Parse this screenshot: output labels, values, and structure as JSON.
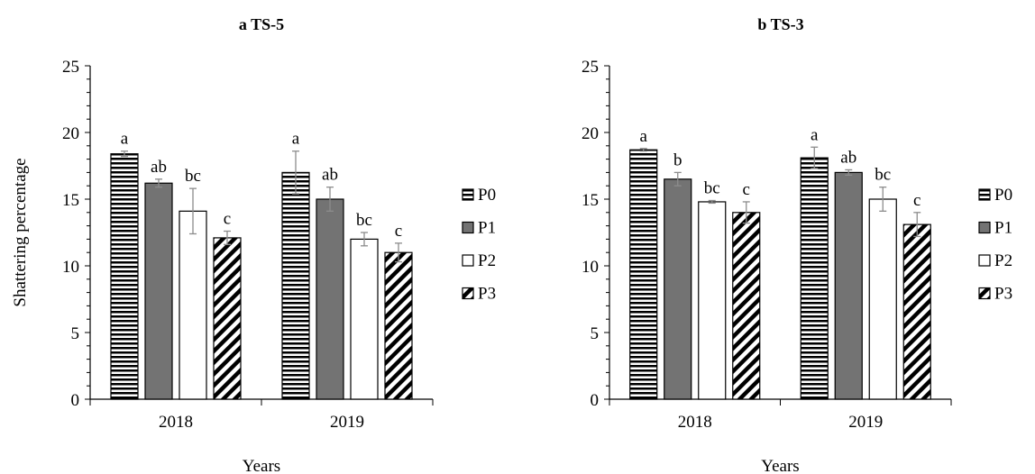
{
  "chart_data": [
    {
      "type": "bar",
      "title": "a TS-5",
      "xlabel": "Years",
      "ylabel": "Shattering percentage",
      "ylim": [
        0,
        25
      ],
      "ytick_step": 5,
      "categories": [
        "2018",
        "2019"
      ],
      "series": [
        {
          "name": "P0",
          "values": [
            18.4,
            17.0
          ],
          "errors": [
            0.2,
            1.6
          ],
          "letters": [
            "a",
            "a"
          ]
        },
        {
          "name": "P1",
          "values": [
            16.2,
            15.0
          ],
          "errors": [
            0.3,
            0.9
          ],
          "letters": [
            "ab",
            "ab"
          ]
        },
        {
          "name": "P2",
          "values": [
            14.1,
            12.0
          ],
          "errors": [
            1.7,
            0.5
          ],
          "letters": [
            "bc",
            "bc"
          ]
        },
        {
          "name": "P3",
          "values": [
            12.1,
            11.0
          ],
          "errors": [
            0.5,
            0.7
          ],
          "letters": [
            "c",
            "c"
          ]
        }
      ],
      "legend": "right",
      "grid": false
    },
    {
      "type": "bar",
      "title": "b TS-3",
      "xlabel": "Years",
      "ylabel": "",
      "ylim": [
        0,
        25
      ],
      "ytick_step": 5,
      "categories": [
        "2018",
        "2019"
      ],
      "series": [
        {
          "name": "P0",
          "values": [
            18.7,
            18.1
          ],
          "errors": [
            0.1,
            0.8
          ],
          "letters": [
            "a",
            "a"
          ]
        },
        {
          "name": "P1",
          "values": [
            16.5,
            17.0
          ],
          "errors": [
            0.5,
            0.2
          ],
          "letters": [
            "b",
            "ab"
          ]
        },
        {
          "name": "P2",
          "values": [
            14.8,
            15.0
          ],
          "errors": [
            0.1,
            0.9
          ],
          "letters": [
            "bc",
            "bc"
          ]
        },
        {
          "name": "P3",
          "values": [
            14.0,
            13.1
          ],
          "errors": [
            0.8,
            0.9
          ],
          "letters": [
            "c",
            "c"
          ]
        }
      ],
      "legend": "right",
      "grid": false
    }
  ]
}
